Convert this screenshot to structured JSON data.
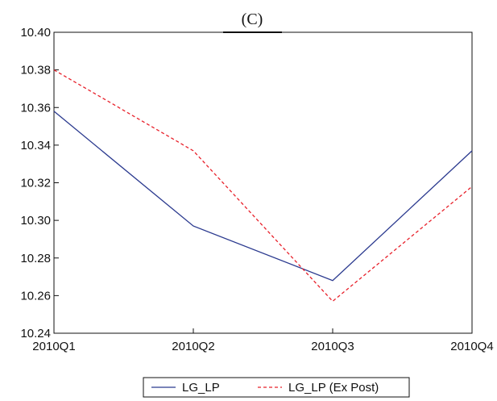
{
  "chart_data": {
    "type": "line",
    "title": "(C)",
    "xlabel": "",
    "ylabel": "",
    "categories": [
      "2010Q1",
      "2010Q2",
      "2010Q3",
      "2010Q4"
    ],
    "ylim": [
      10.24,
      10.4
    ],
    "yticks": [
      "10.24",
      "10.26",
      "10.28",
      "10.30",
      "10.32",
      "10.34",
      "10.36",
      "10.38",
      "10.40"
    ],
    "grid": false,
    "legend_position": "bottom",
    "series": [
      {
        "name": "LG_LP",
        "values": [
          10.358,
          10.297,
          10.268,
          10.337
        ],
        "color": "#2b3a8f",
        "dash": "solid"
      },
      {
        "name": "LG_LP (Ex Post)",
        "values": [
          10.38,
          10.337,
          10.257,
          10.318
        ],
        "color": "#e8202a",
        "dash": "dashed"
      }
    ]
  }
}
